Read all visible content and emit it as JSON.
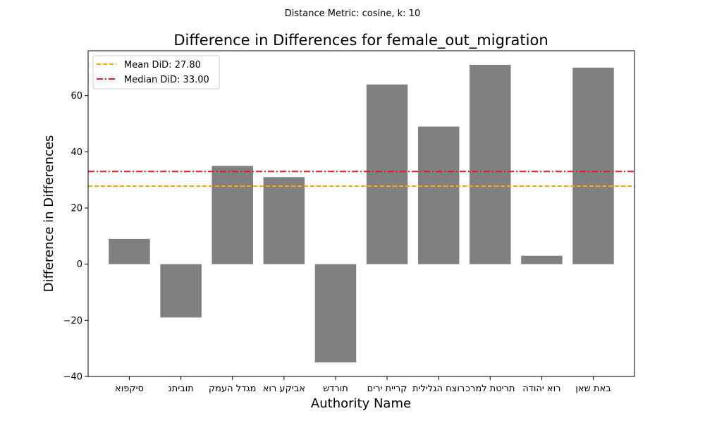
{
  "chart_data": {
    "type": "bar",
    "suptitle": "Distance Metric: cosine, k: 10",
    "title": "Difference in Differences for female_out_migration",
    "xlabel": "Authority Name",
    "ylabel": "Difference in Differences",
    "categories": [
      "סיקפוא",
      "תוביתנ",
      "מגדל העמק",
      "אביקע רוא",
      "תורדש",
      "קריית ירים",
      "רוצח הגלילית",
      "תריטת למרכ",
      "רוא יהודה",
      "באת שאן"
    ],
    "values": [
      9,
      -19,
      35,
      31,
      -35,
      64,
      49,
      71,
      3,
      70
    ],
    "ylim": [
      -40,
      76
    ],
    "yticks": [
      -40,
      -20,
      0,
      20,
      40,
      60
    ],
    "ytick_labels": [
      "−40",
      "−20",
      "0",
      "20",
      "40",
      "60"
    ],
    "bar_color": "#808080",
    "grid": false,
    "legend_position": "top-left",
    "reference_lines": [
      {
        "name": "Mean DiD: 27.80",
        "value": 27.8,
        "color": "#ffa500",
        "style": "dashed"
      },
      {
        "name": "Median DiD: 33.00",
        "value": 33.0,
        "color": "#e31a1c",
        "style": "dashdot"
      }
    ]
  }
}
